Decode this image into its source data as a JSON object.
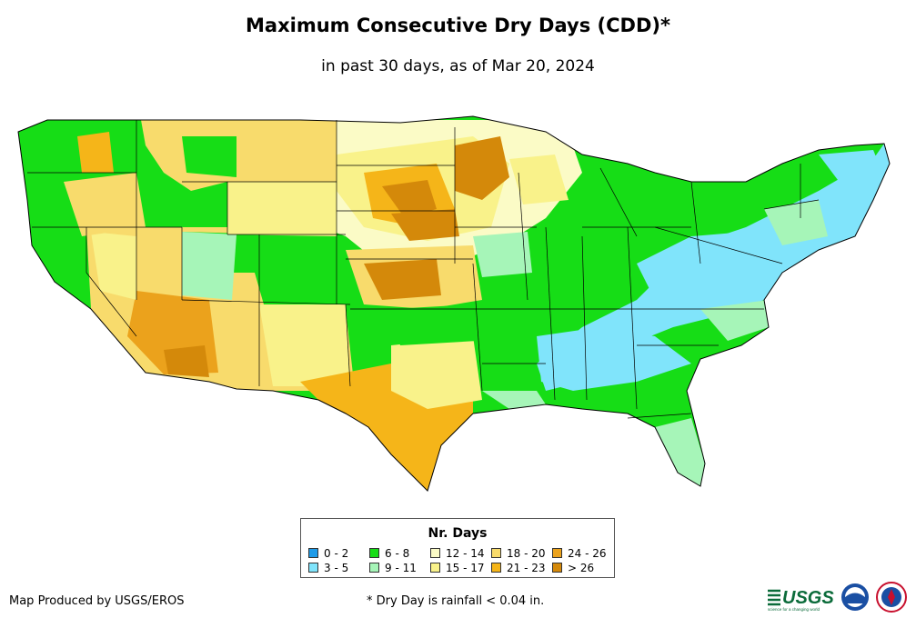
{
  "title": "Maximum Consecutive Dry Days (CDD)*",
  "subtitle": "in past 30 days, as of Mar 20, 2024",
  "legend": {
    "title": "Nr. Days",
    "items": [
      {
        "label": "0 - 2",
        "color": "#1e9be8"
      },
      {
        "label": "3 - 5",
        "color": "#80e4fb"
      },
      {
        "label": "6 - 8",
        "color": "#16dd16"
      },
      {
        "label": "9 - 11",
        "color": "#a6f5b8"
      },
      {
        "label": "12 - 14",
        "color": "#fbfbc6"
      },
      {
        "label": "15 - 17",
        "color": "#f9f28a"
      },
      {
        "label": "18 - 20",
        "color": "#f8db6c"
      },
      {
        "label": "21 - 23",
        "color": "#f5b519"
      },
      {
        "label": "24 - 26",
        "color": "#eba21c"
      },
      {
        "label": "> 26",
        "color": "#d4890a"
      }
    ]
  },
  "credit": "Map Produced by USGS/EROS",
  "footnote": "* Dry Day is rainfall < 0.04 in.",
  "logos": {
    "usgs_text": "USGS",
    "usgs_tagline": "science for a changing world"
  }
}
